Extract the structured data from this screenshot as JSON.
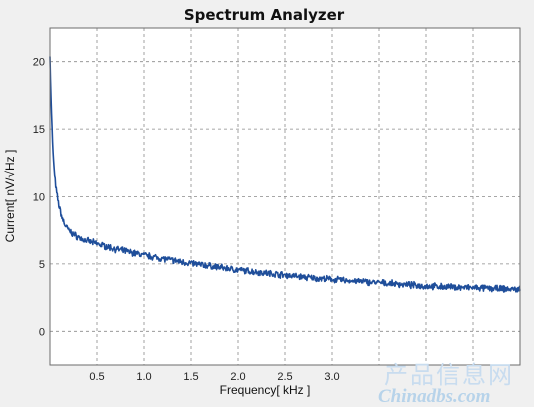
{
  "chart_data": {
    "type": "line",
    "title": "Spectrum Analyzer",
    "xlabel": "Frequency[ kHz ]",
    "ylabel": "Current[ nV/√Hz ]",
    "xlim": [
      0,
      5.0
    ],
    "ylim": [
      -2.5,
      22.5
    ],
    "grid": true,
    "x_ticks": [
      0.5,
      1.0,
      1.5,
      2.0,
      2.5,
      3.0,
      3.5,
      4.0,
      4.5,
      5.0
    ],
    "x_tick_labels": [
      "0.5",
      "1.0",
      "1.5",
      "2.0",
      "2.5",
      "3.0",
      "",
      "",
      "",
      ""
    ],
    "y_ticks": [
      0,
      5,
      10,
      15,
      20
    ],
    "y_tick_labels": [
      "0",
      "5",
      "10",
      "15",
      "20"
    ],
    "colors": {
      "series": "#1f4e9a",
      "grid": "#8a8a8a",
      "plot_bg": "#ffffff",
      "page_bg": "#f0f0f0"
    },
    "series": [
      {
        "x": [
          0.0,
          0.01,
          0.02,
          0.03,
          0.05,
          0.07,
          0.1,
          0.13,
          0.16,
          0.2,
          0.25,
          0.3,
          0.35,
          0.4,
          0.5,
          0.6,
          0.7,
          0.8,
          0.9,
          1.0,
          1.2,
          1.4,
          1.6,
          1.8,
          2.0,
          2.2,
          2.4,
          2.6,
          2.8,
          3.0,
          3.2,
          3.4,
          3.6,
          3.8,
          4.0,
          4.2,
          4.4,
          4.6,
          4.8,
          5.0
        ],
        "y": [
          20.5,
          17.5,
          15.5,
          13.5,
          11.5,
          10.3,
          9.2,
          8.4,
          7.9,
          7.5,
          7.2,
          7.0,
          6.8,
          6.7,
          6.5,
          6.3,
          6.1,
          5.95,
          5.8,
          5.65,
          5.4,
          5.15,
          4.95,
          4.75,
          4.55,
          4.4,
          4.25,
          4.1,
          3.95,
          3.85,
          3.75,
          3.65,
          3.55,
          3.45,
          3.35,
          3.3,
          3.25,
          3.2,
          3.15,
          3.1
        ]
      }
    ]
  },
  "watermark": {
    "cn": "产品信息网",
    "en": "Chinadbs.com"
  }
}
